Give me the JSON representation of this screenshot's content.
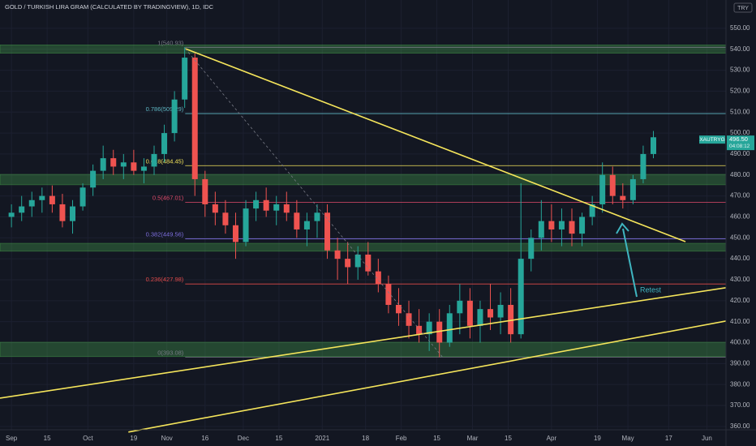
{
  "chart_data": {
    "type": "candlestick",
    "title": "GOLD / TURKISH LIRA GRAM (CALCULATED BY TRADINGVIEW), 1D, IDC",
    "currency": "TRY",
    "up_color": "#26a69a",
    "down_color": "#ef5350",
    "x": [
      0,
      4,
      8,
      12,
      16,
      20,
      24,
      28,
      32,
      36,
      40,
      44,
      48,
      52,
      56,
      60,
      64,
      68,
      72,
      76,
      80,
      84,
      88,
      92,
      96,
      100,
      104,
      108,
      112,
      116,
      120,
      124,
      128,
      132,
      136,
      140,
      144,
      148,
      152,
      156,
      160,
      164,
      168,
      172,
      176,
      180,
      184,
      188,
      192,
      196,
      200,
      204,
      208,
      212,
      216,
      220,
      224,
      228,
      232,
      236,
      240,
      244,
      248,
      252
    ],
    "open": [
      460,
      462,
      465,
      468,
      470,
      466,
      458,
      465,
      474,
      482,
      488,
      484,
      486,
      482,
      484,
      490,
      500,
      516,
      536,
      478,
      466,
      462,
      456,
      448,
      464,
      468,
      463,
      466,
      462,
      454,
      458,
      462,
      444,
      440,
      436,
      442,
      434,
      428,
      418,
      414,
      408,
      404,
      410,
      400,
      414,
      420,
      408,
      416,
      412,
      418,
      404,
      440,
      450,
      458,
      454,
      458,
      452,
      460,
      466,
      480,
      470,
      468,
      478,
      490
    ],
    "high": [
      466,
      470,
      472,
      474,
      475,
      471,
      468,
      476,
      485,
      494,
      492,
      490,
      492,
      488,
      494,
      504,
      520,
      541,
      538,
      482,
      472,
      468,
      462,
      468,
      472,
      474,
      470,
      472,
      468,
      462,
      466,
      466,
      450,
      448,
      446,
      448,
      440,
      432,
      426,
      420,
      416,
      414,
      416,
      418,
      428,
      426,
      420,
      428,
      424,
      426,
      476,
      454,
      468,
      466,
      464,
      464,
      462,
      470,
      486,
      484,
      476,
      480,
      494,
      501
    ],
    "low": [
      455,
      458,
      460,
      462,
      462,
      455,
      452,
      463,
      470,
      478,
      480,
      478,
      480,
      476,
      480,
      486,
      496,
      512,
      470,
      460,
      456,
      452,
      440,
      446,
      458,
      460,
      456,
      458,
      450,
      446,
      450,
      440,
      430,
      428,
      430,
      432,
      424,
      414,
      408,
      402,
      400,
      396,
      393,
      398,
      404,
      402,
      400,
      406,
      404,
      400,
      402,
      434,
      444,
      448,
      446,
      446,
      446,
      456,
      462,
      466,
      464,
      466,
      476,
      488
    ],
    "close": [
      462,
      465,
      468,
      470,
      466,
      458,
      465,
      474,
      482,
      488,
      484,
      486,
      482,
      484,
      490,
      500,
      516,
      536,
      478,
      466,
      462,
      456,
      448,
      464,
      468,
      463,
      466,
      462,
      454,
      458,
      462,
      444,
      440,
      436,
      442,
      434,
      428,
      418,
      414,
      408,
      404,
      410,
      400,
      414,
      420,
      408,
      416,
      412,
      418,
      404,
      440,
      450,
      458,
      454,
      458,
      452,
      460,
      466,
      480,
      470,
      468,
      478,
      490,
      498
    ],
    "xlim": [
      -4.5,
      280.5
    ],
    "ylim": [
      358.4,
      563.5
    ],
    "xticks": [
      {
        "value": 0,
        "label": "Sep"
      },
      {
        "value": 14,
        "label": "15"
      },
      {
        "value": 30,
        "label": "Oct"
      },
      {
        "value": 48,
        "label": "19"
      },
      {
        "value": 61,
        "label": "Nov"
      },
      {
        "value": 76,
        "label": "16"
      },
      {
        "value": 91,
        "label": "Dec"
      },
      {
        "value": 105,
        "label": "15"
      },
      {
        "value": 122,
        "label": "2021"
      },
      {
        "value": 139,
        "label": "18"
      },
      {
        "value": 153,
        "label": "Feb"
      },
      {
        "value": 167,
        "label": "15"
      },
      {
        "value": 181,
        "label": "Mar"
      },
      {
        "value": 195,
        "label": "15"
      },
      {
        "value": 212,
        "label": "Apr"
      },
      {
        "value": 230,
        "label": "19"
      },
      {
        "value": 242,
        "label": "May"
      },
      {
        "value": 258,
        "label": "17"
      },
      {
        "value": 273,
        "label": "Jun"
      }
    ],
    "yticks": [
      {
        "value": 360,
        "label": "360.00"
      },
      {
        "value": 370,
        "label": "370.00"
      },
      {
        "value": 380,
        "label": "380.00"
      },
      {
        "value": 390,
        "label": "390.00"
      },
      {
        "value": 400,
        "label": "400.00"
      },
      {
        "value": 410,
        "label": "410.00"
      },
      {
        "value": 420,
        "label": "420.00"
      },
      {
        "value": 430,
        "label": "430.00"
      },
      {
        "value": 440,
        "label": "440.00"
      },
      {
        "value": 450,
        "label": "450.00"
      },
      {
        "value": 460,
        "label": "460.00"
      },
      {
        "value": 470,
        "label": "470.00"
      },
      {
        "value": 480,
        "label": "480.00"
      },
      {
        "value": 490,
        "label": "490.00"
      },
      {
        "value": 500,
        "label": "500.00"
      },
      {
        "value": 510,
        "label": "510.00"
      },
      {
        "value": 520,
        "label": "520.00"
      },
      {
        "value": 530,
        "label": "530.00"
      },
      {
        "value": 540,
        "label": "540.00"
      },
      {
        "value": 550,
        "label": "550.00"
      }
    ],
    "grid": true,
    "zones": [
      {
        "low": 538.1,
        "high": 542.1
      },
      {
        "low": 475.3,
        "high": 480.3
      },
      {
        "low": 443.6,
        "high": 447.4
      },
      {
        "low": 393.3,
        "high": 400.2
      }
    ],
    "fib_start": 68.2,
    "fib_levels": [
      {
        "label": "1(540.93)",
        "value": 540.93,
        "color": "#787b86"
      },
      {
        "label": "0.786(509.29)",
        "value": 509.29,
        "color": "#5fb7c4"
      },
      {
        "label": "0.618(484.45)",
        "value": 484.45,
        "color": "#f5e55b"
      },
      {
        "label": "0.5(467.01)",
        "value": 467.01,
        "color": "#e04a6a"
      },
      {
        "label": "0.382(449.56)",
        "value": 449.56,
        "color": "#7e6fe0"
      },
      {
        "label": "0.236(427.98)",
        "value": 427.98,
        "color": "#e04a4a"
      },
      {
        "label": "0(393.08)",
        "value": 393.08,
        "color": "#787b86"
      }
    ],
    "trendlines": [
      {
        "x": [
          68.2,
          264.6
        ],
        "y": [
          540.3,
          448.2
        ],
        "color": "#f5e55b",
        "dashed": false
      },
      {
        "x": [
          -4.5,
          280.5
        ],
        "y": [
          373.5,
          426.2
        ],
        "color": "#f5e55b",
        "dashed": false
      },
      {
        "x": [
          45.9,
          280.5
        ],
        "y": [
          357.3,
          410.3
        ],
        "color": "#f5e55b",
        "dashed": false
      },
      {
        "x": [
          68.2,
          169.1
        ],
        "y": [
          540.3,
          393.3
        ],
        "color": "#787b86",
        "dashed": true
      }
    ],
    "annotation": "Retest",
    "last_price": {
      "symbol": "XAUTRYG",
      "value": 496.5,
      "label": "496.50",
      "countdown": "04:08:12"
    }
  }
}
